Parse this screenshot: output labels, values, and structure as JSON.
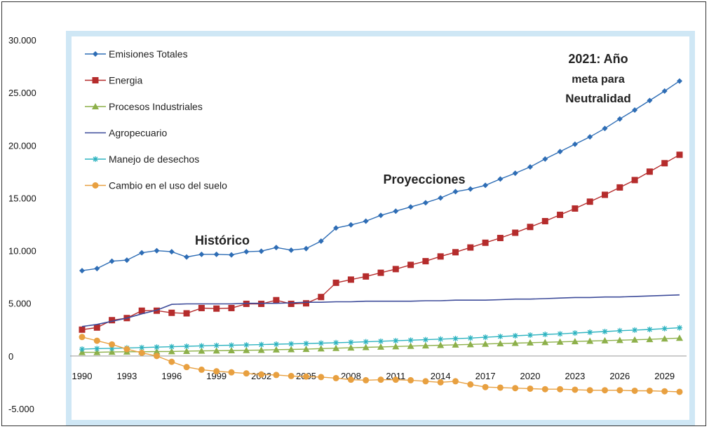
{
  "chart_data": {
    "type": "line",
    "ylim": [
      -5000,
      30000
    ],
    "y_ticks": [
      "30.000",
      "25.000",
      "20.000",
      "15.000",
      "10.000",
      "5.000",
      "0",
      "-5.000"
    ],
    "y_tick_values": [
      30000,
      25000,
      20000,
      15000,
      10000,
      5000,
      0,
      -5000
    ],
    "x_tick_labels": [
      "1990",
      "1993",
      "1996",
      "1999",
      "2002",
      "2005",
      "2008",
      "2011",
      "2014",
      "2017",
      "2020",
      "2023",
      "2026",
      "2029"
    ],
    "x": [
      1990,
      1991,
      1992,
      1993,
      1994,
      1995,
      1996,
      1997,
      1998,
      1999,
      2000,
      2001,
      2002,
      2003,
      2004,
      2005,
      2006,
      2007,
      2008,
      2009,
      2010,
      2011,
      2012,
      2013,
      2014,
      2015,
      2016,
      2017,
      2018,
      2019,
      2020,
      2021,
      2022,
      2023,
      2024,
      2025,
      2026,
      2027,
      2028,
      2029,
      2030
    ],
    "legend_position": "top-left",
    "series": [
      {
        "name": "Emisiones Totales",
        "color": "#2e6db5",
        "marker": "diamond",
        "values": [
          8100,
          8300,
          9000,
          9100,
          9800,
          10000,
          9900,
          9400,
          9650,
          9650,
          9600,
          9900,
          9950,
          10300,
          10050,
          10200,
          10900,
          12150,
          12450,
          12800,
          13350,
          13750,
          14150,
          14550,
          15000,
          15600,
          15850,
          16200,
          16800,
          17350,
          17950,
          18700,
          19400,
          20100,
          20800,
          21600,
          22500,
          23350,
          24250,
          25150,
          26100
        ]
      },
      {
        "name": "Energia",
        "color": "#b52c2c",
        "marker": "square",
        "values": [
          2500,
          2700,
          3400,
          3600,
          4300,
          4300,
          4100,
          4050,
          4550,
          4500,
          4550,
          4950,
          4950,
          5300,
          4950,
          5000,
          5600,
          6950,
          7250,
          7550,
          7900,
          8250,
          8650,
          9000,
          9450,
          9850,
          10300,
          10750,
          11200,
          11700,
          12250,
          12800,
          13400,
          14000,
          14650,
          15300,
          16000,
          16700,
          17500,
          18300,
          19100
        ]
      },
      {
        "name": "Procesos Industriales",
        "color": "#8db04a",
        "marker": "triangle",
        "values": [
          350,
          350,
          380,
          400,
          400,
          420,
          430,
          460,
          480,
          500,
          520,
          540,
          560,
          600,
          620,
          650,
          700,
          740,
          780,
          820,
          860,
          900,
          940,
          980,
          1020,
          1060,
          1100,
          1140,
          1180,
          1220,
          1260,
          1300,
          1340,
          1380,
          1420,
          1460,
          1500,
          1540,
          1580,
          1640,
          1700
        ]
      },
      {
        "name": "Agropecuario",
        "color": "#3e4c9a",
        "marker": "none",
        "values": [
          2800,
          3000,
          3300,
          3600,
          4000,
          4350,
          4900,
          4950,
          4950,
          4950,
          4950,
          5000,
          5000,
          5000,
          5050,
          5100,
          5100,
          5150,
          5150,
          5200,
          5200,
          5200,
          5200,
          5250,
          5250,
          5300,
          5300,
          5300,
          5350,
          5400,
          5400,
          5450,
          5500,
          5550,
          5550,
          5600,
          5600,
          5650,
          5700,
          5750,
          5800
        ]
      },
      {
        "name": "Manejo de desechos",
        "color": "#2db3c0",
        "marker": "star",
        "values": [
          650,
          700,
          730,
          760,
          800,
          840,
          880,
          920,
          960,
          1000,
          1020,
          1050,
          1080,
          1120,
          1150,
          1180,
          1220,
          1260,
          1300,
          1350,
          1400,
          1450,
          1500,
          1550,
          1600,
          1650,
          1700,
          1780,
          1850,
          1920,
          1980,
          2050,
          2100,
          2180,
          2250,
          2320,
          2400,
          2460,
          2520,
          2600,
          2680
        ]
      },
      {
        "name": "Cambio en el uso del suelo",
        "color": "#e8a040",
        "marker": "circle",
        "values": [
          1800,
          1450,
          1100,
          650,
          300,
          0,
          -550,
          -1050,
          -1300,
          -1450,
          -1550,
          -1650,
          -1750,
          -1800,
          -1900,
          -1950,
          -2000,
          -2100,
          -2250,
          -2300,
          -2250,
          -2250,
          -2300,
          -2400,
          -2500,
          -2400,
          -2700,
          -2950,
          -3000,
          -3050,
          -3100,
          -3150,
          -3150,
          -3200,
          -3250,
          -3250,
          -3250,
          -3300,
          -3300,
          -3350,
          -3400
        ]
      }
    ],
    "annotations": [
      {
        "lines": [
          "2021: Año",
          "meta para",
          "Neutralidad"
        ],
        "position": "top-right"
      },
      {
        "lines": [
          "Proyecciones"
        ],
        "position": "upper-center"
      },
      {
        "lines": [
          "Histórico"
        ],
        "position": "middle-left"
      }
    ]
  }
}
